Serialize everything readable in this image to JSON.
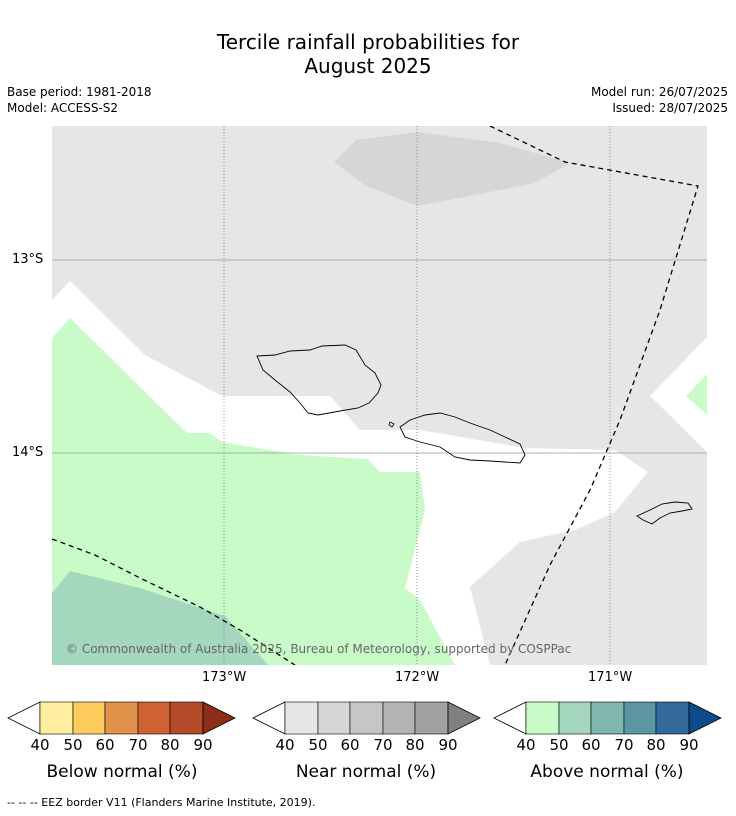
{
  "title_line1": "Tercile rainfall probabilities for",
  "title_line2": "August 2025",
  "base_period": "Base period: 1981-2018",
  "model": "Model: ACCESS-S2",
  "model_run": "Model run: 26/07/2025",
  "issued": "Issued: 28/07/2025",
  "lat_labels": [
    "13°S",
    "14°S"
  ],
  "lon_labels": [
    "173°W",
    "172°W",
    "171°W"
  ],
  "copyright": "© Commonwealth of Australia 2025, Bureau of Meteorology, supported by COSPPac",
  "colorbars": [
    {
      "label": "Below normal (%)",
      "colors": [
        "#ffeda0",
        "#fecc5c",
        "#e0914a",
        "#cf6233",
        "#b24b27",
        "#8c2e17"
      ]
    },
    {
      "label": "Near normal (%)",
      "colors": [
        "#e6e6e6",
        "#d6d6d6",
        "#c6c6c6",
        "#b3b3b3",
        "#a0a0a0",
        "#808080"
      ]
    },
    {
      "label": "Above normal (%)",
      "colors": [
        "#c9fbc9",
        "#a4d7bd",
        "#7fb6b0",
        "#5c96a4",
        "#326a9b",
        "#0b4a8b"
      ]
    }
  ],
  "cbar_ticks": [
    "40",
    "50",
    "60",
    "70",
    "80",
    "90"
  ],
  "footnote": "--  --  -- EEZ border V11 (Flanders Marine Institute, 2019)."
}
